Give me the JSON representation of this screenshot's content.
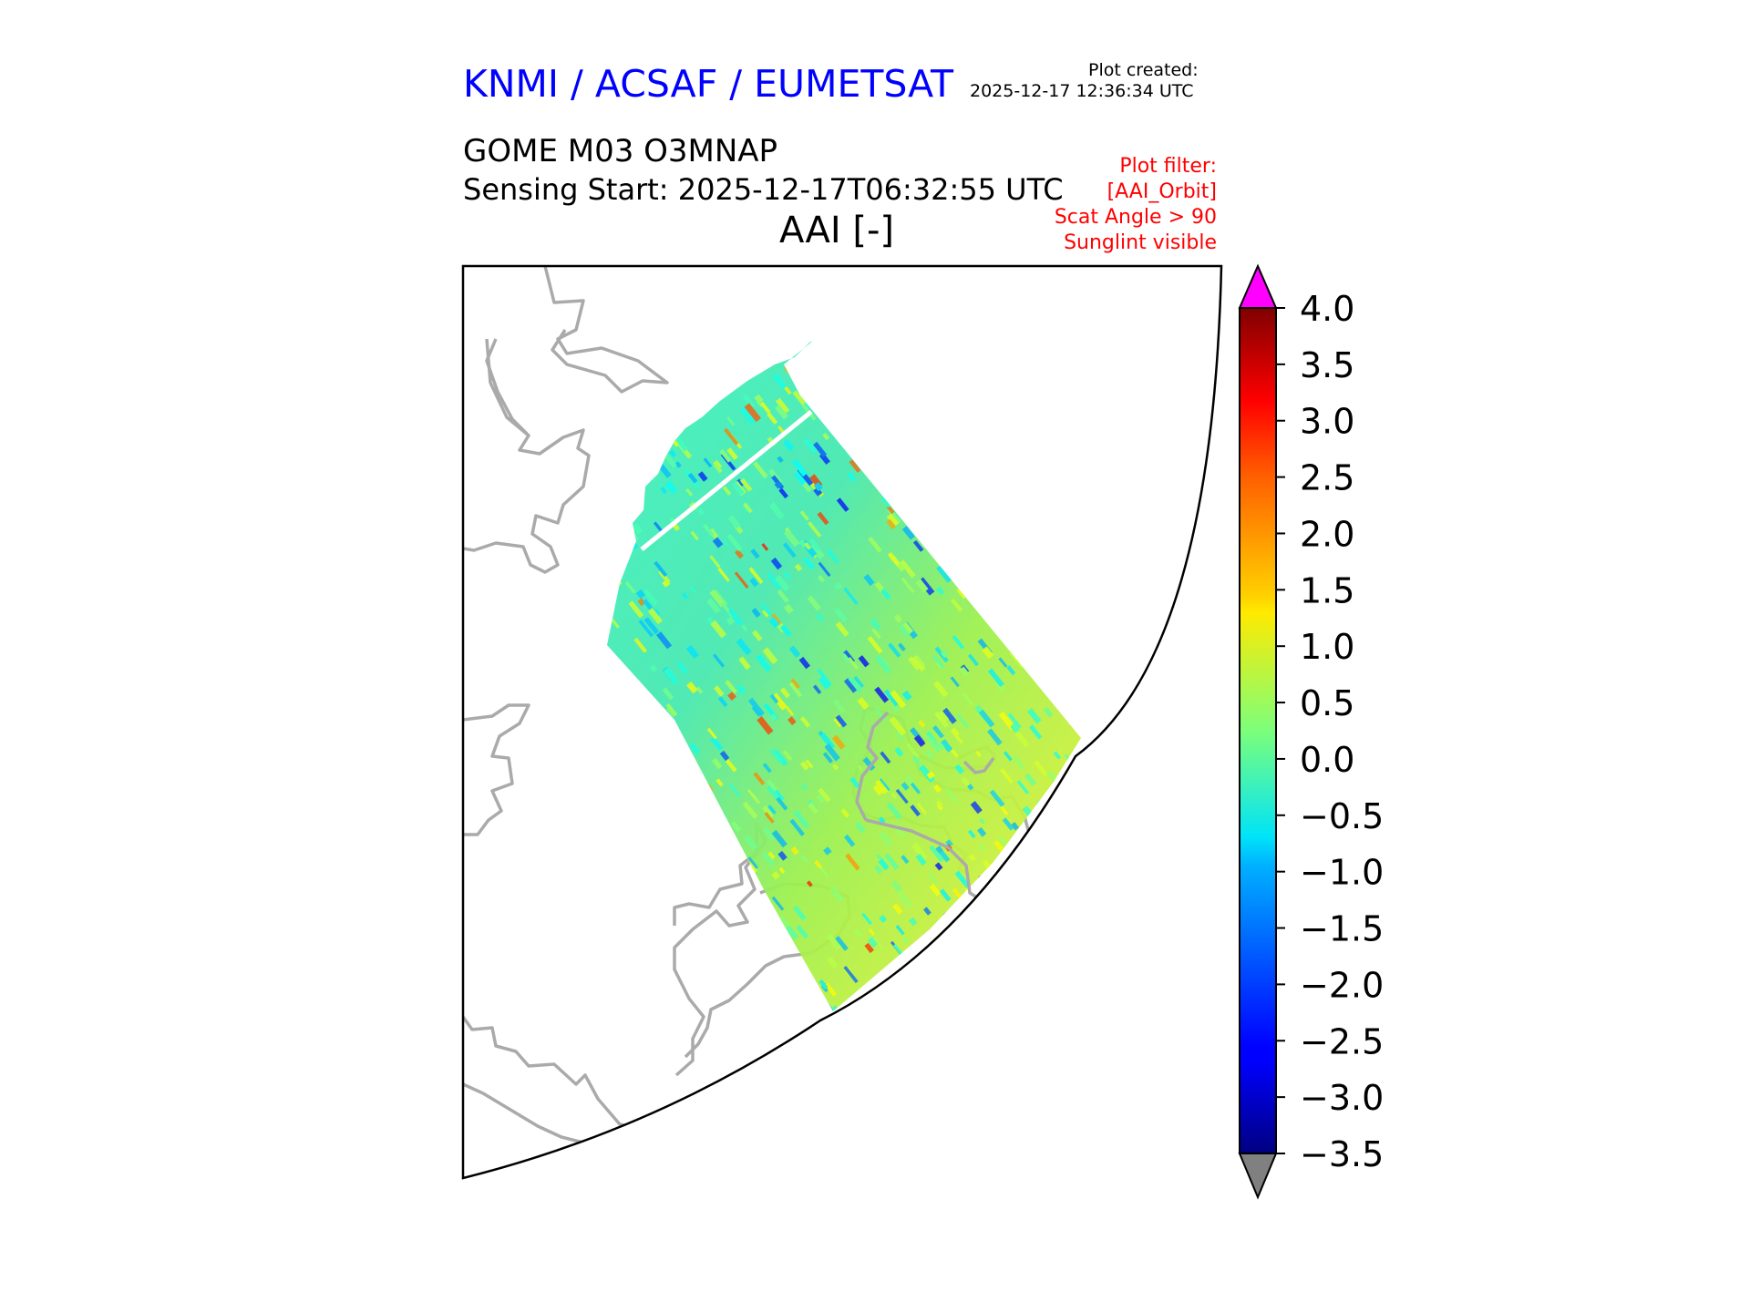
{
  "header": {
    "organization": "KNMI / ACSAF / EUMETSAT",
    "plot_created_label": "Plot created:",
    "plot_created_value": "2025-12-17 12:36:34 UTC",
    "product": "GOME M03 O3MNAP",
    "sensing_start": "Sensing Start: 2025-12-17T06:32:55 UTC",
    "variable": "AAI [-]",
    "filter_lines": [
      "Plot filter:",
      "[AAI_Orbit]",
      "Scat Angle > 90",
      "Sunglint visible"
    ]
  },
  "colors": {
    "title": "#0000ff",
    "filter_text": "#ff0000",
    "coastline": "#aaaaaa",
    "over_max": "#ff00ff",
    "under_min": "#808080"
  },
  "colorbar": {
    "colormap": "jet",
    "min": -3.5,
    "max": 4.0,
    "extend": "both",
    "ticks": [
      4.0,
      3.5,
      3.0,
      2.5,
      2.0,
      1.5,
      1.0,
      0.5,
      0.0,
      -0.5,
      -1.0,
      -1.5,
      -2.0,
      -2.5,
      -3.0,
      -3.5
    ],
    "tick_labels": [
      "4.0",
      "3.5",
      "3.0",
      "2.5",
      "2.0",
      "1.5",
      "1.0",
      "0.5",
      "0.0",
      "−0.5",
      "−1.0",
      "−1.5",
      "−2.0",
      "−2.5",
      "−3.0",
      "−3.5"
    ]
  },
  "map": {
    "projection": "conic",
    "swath_typical_value": 0.0,
    "features": [
      "coastlines",
      "satellite-swath"
    ]
  }
}
